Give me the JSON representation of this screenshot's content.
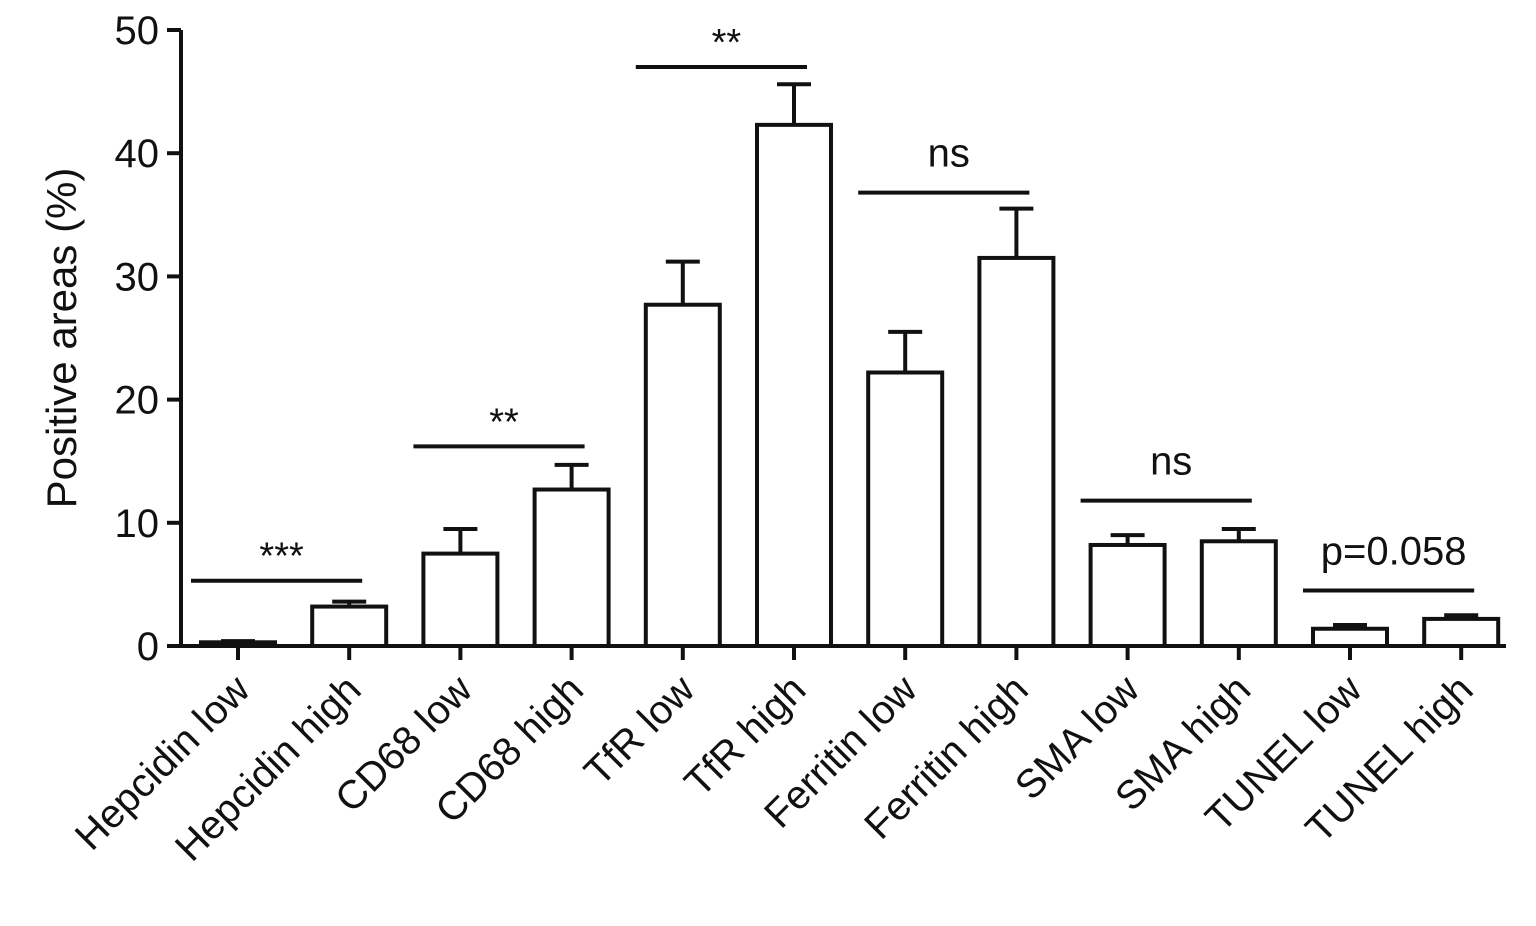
{
  "chart_data": {
    "type": "bar",
    "title": "",
    "xlabel": "",
    "ylabel": "Positive areas (%)",
    "ylim": [
      0,
      50
    ],
    "yticks": [
      0,
      10,
      20,
      30,
      40,
      50
    ],
    "grid": false,
    "categories": [
      "Hepcidin low",
      "Hepcidin high",
      "CD68 low",
      "CD68 high",
      "TfR low",
      "TfR high",
      "Ferritin low",
      "Ferritin high",
      "SMA low",
      "SMA high",
      "TUNEL low",
      "TUNEL high"
    ],
    "values": [
      0.3,
      3.2,
      7.5,
      12.7,
      27.7,
      42.3,
      22.2,
      31.5,
      8.2,
      8.5,
      1.4,
      2.2
    ],
    "errors": [
      0.1,
      0.4,
      2.0,
      2.0,
      3.5,
      3.3,
      3.3,
      4.0,
      0.8,
      1.0,
      0.3,
      0.3
    ],
    "significance": [
      {
        "from": 0,
        "to": 1,
        "label": "***",
        "y": 5.3
      },
      {
        "from": 2,
        "to": 3,
        "label": "**",
        "y": 16.2
      },
      {
        "from": 4,
        "to": 5,
        "label": "**",
        "y": 47.0
      },
      {
        "from": 6,
        "to": 7,
        "label": "ns",
        "y": 36.8
      },
      {
        "from": 8,
        "to": 9,
        "label": "ns",
        "y": 11.8
      },
      {
        "from": 10,
        "to": 11,
        "label": "p=0.058",
        "y": 4.5
      }
    ]
  }
}
